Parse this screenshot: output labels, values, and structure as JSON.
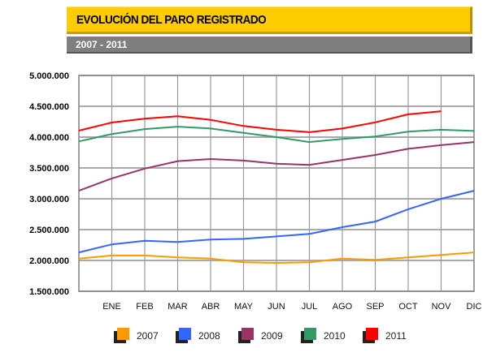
{
  "header": {
    "title": "EVOLUCIÓN DEL PARO REGISTRADO",
    "subtitle": "2007 - 2011"
  },
  "chart_data": {
    "type": "line",
    "title": "EVOLUCIÓN DEL PARO REGISTRADO",
    "subtitle": "2007 - 2011",
    "categories": [
      "",
      "ENE",
      "FEB",
      "MAR",
      "ABR",
      "MAY",
      "JUN",
      "JUL",
      "AGO",
      "SEP",
      "OCT",
      "NOV",
      "DIC"
    ],
    "ylim": [
      1500000,
      5000000
    ],
    "yticks": [
      "5.000.000",
      "4.500.000",
      "4.000.000",
      "3.500.000",
      "3.000.000",
      "2.500.000",
      "2.000.000",
      "1.500.000"
    ],
    "ytick_values": [
      5000000,
      4500000,
      4000000,
      3500000,
      3000000,
      2500000,
      2000000,
      1500000
    ],
    "grid": true,
    "legend_position": "bottom",
    "series": [
      {
        "name": "2007",
        "color": "#ff9900",
        "values": [
          2030000,
          2080000,
          2080000,
          2050000,
          2030000,
          1970000,
          1960000,
          1970000,
          2030000,
          2010000,
          2050000,
          2090000,
          2130000
        ]
      },
      {
        "name": "2008",
        "color": "#3366ff",
        "values": [
          2130000,
          2260000,
          2320000,
          2300000,
          2340000,
          2350000,
          2390000,
          2430000,
          2540000,
          2630000,
          2830000,
          3000000,
          3130000
        ]
      },
      {
        "name": "2009",
        "color": "#993366",
        "values": [
          3130000,
          3330000,
          3490000,
          3610000,
          3645000,
          3620000,
          3570000,
          3550000,
          3630000,
          3710000,
          3810000,
          3870000,
          3920000
        ]
      },
      {
        "name": "2010",
        "color": "#339966",
        "values": [
          3930000,
          4050000,
          4130000,
          4170000,
          4140000,
          4070000,
          4000000,
          3920000,
          3970000,
          4010000,
          4090000,
          4120000,
          4100000
        ]
      },
      {
        "name": "2011",
        "color": "#ff0000",
        "values": [
          4105000,
          4237000,
          4300000,
          4340000,
          4280000,
          4180000,
          4120000,
          4080000,
          4140000,
          4240000,
          4370000,
          4420000,
          null
        ]
      }
    ]
  }
}
